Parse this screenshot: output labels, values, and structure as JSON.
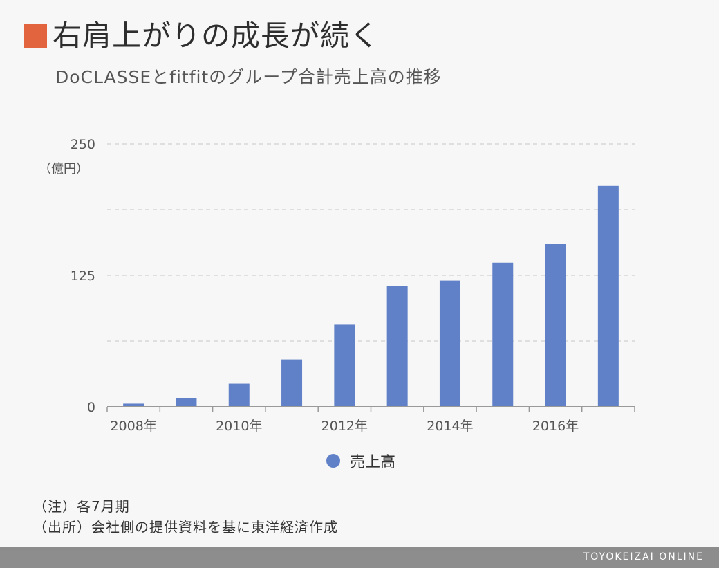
{
  "title": "右肩上がりの成長が続く",
  "subtitle": "DoCLASSEとfitfitのグループ合計売上高の推移",
  "notes": {
    "note1": "（注）各7月期",
    "note2": "（出所）会社側の提供資料を基に東洋経済作成"
  },
  "footer": "TOYOKEIZAI ONLINE",
  "colors": {
    "accent": "#e2643f",
    "bar": "#6080c8",
    "grid": "#d7d7d7",
    "axis": "#999999"
  },
  "chart_data": {
    "type": "bar",
    "categories": [
      "2008",
      "2009",
      "2010",
      "2011",
      "2012",
      "2013",
      "2014",
      "2015",
      "2016",
      "2017"
    ],
    "x_tick_labels": [
      "2008年",
      "2010年",
      "2012年",
      "2014年",
      "2016年"
    ],
    "series": [
      {
        "name": "売上高",
        "values": [
          3,
          8,
          22,
          45,
          78,
          115,
          120,
          137,
          155,
          210
        ]
      }
    ],
    "ylabel": "（億円）",
    "y_ticks": [
      "250",
      "125",
      "0"
    ],
    "ylim": [
      0,
      250
    ],
    "grid": true,
    "legend": "bottom-center"
  }
}
